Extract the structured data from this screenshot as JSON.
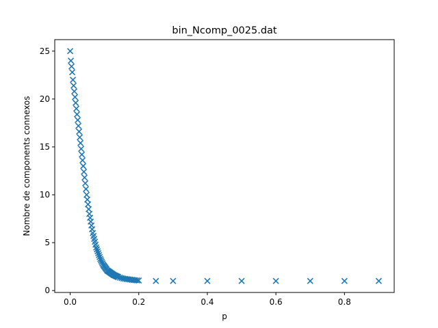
{
  "chart_data": {
    "type": "scatter",
    "title": "bin_Ncomp_0025.dat",
    "xlabel": "p",
    "ylabel": "Nombre de components connexos",
    "xlim": [
      -0.045,
      0.945
    ],
    "ylim": [
      -0.2,
      26.2
    ],
    "xticks": [
      "0.0",
      "0.2",
      "0.4",
      "0.6",
      "0.8"
    ],
    "xtick_values": [
      0.0,
      0.2,
      0.4,
      0.6,
      0.8
    ],
    "yticks": [
      "0",
      "5",
      "10",
      "15",
      "20",
      "25"
    ],
    "ytick_values": [
      0,
      5,
      10,
      15,
      20,
      25
    ],
    "grid": false,
    "marker": "x",
    "color": "#1f77b4",
    "series": [
      {
        "x": [
          0.0,
          0.002,
          0.004,
          0.006,
          0.008,
          0.01,
          0.012,
          0.014,
          0.016,
          0.018,
          0.02,
          0.022,
          0.024,
          0.026,
          0.028,
          0.03,
          0.032,
          0.034,
          0.036,
          0.038,
          0.04,
          0.042,
          0.044,
          0.046,
          0.048,
          0.05,
          0.052,
          0.054,
          0.056,
          0.058,
          0.06,
          0.062,
          0.064,
          0.066,
          0.068,
          0.07,
          0.072,
          0.074,
          0.076,
          0.078,
          0.08,
          0.082,
          0.084,
          0.086,
          0.088,
          0.09,
          0.092,
          0.094,
          0.096,
          0.098,
          0.1,
          0.102,
          0.104,
          0.106,
          0.108,
          0.11,
          0.112,
          0.114,
          0.116,
          0.118,
          0.12,
          0.122,
          0.124,
          0.126,
          0.128,
          0.13,
          0.132,
          0.134,
          0.136,
          0.138,
          0.14,
          0.145,
          0.15,
          0.155,
          0.16,
          0.165,
          0.17,
          0.175,
          0.18,
          0.185,
          0.19,
          0.195,
          0.2,
          0.25,
          0.3,
          0.4,
          0.5,
          0.6,
          0.7,
          0.8,
          0.9
        ],
        "y": [
          25.0,
          24.0,
          23.4,
          22.8,
          22.0,
          21.4,
          20.8,
          20.2,
          19.6,
          19.0,
          18.4,
          17.8,
          17.2,
          16.6,
          16.0,
          15.4,
          14.8,
          14.2,
          13.6,
          13.0,
          12.4,
          11.8,
          11.2,
          10.6,
          10.0,
          9.5,
          9.0,
          8.5,
          8.0,
          7.6,
          7.2,
          6.8,
          6.4,
          6.0,
          5.7,
          5.4,
          5.1,
          4.8,
          4.5,
          4.3,
          4.1,
          3.9,
          3.7,
          3.5,
          3.3,
          3.15,
          3.0,
          2.85,
          2.7,
          2.6,
          2.5,
          2.4,
          2.3,
          2.2,
          2.1,
          2.05,
          2.0,
          1.95,
          1.9,
          1.85,
          1.8,
          1.75,
          1.7,
          1.65,
          1.6,
          1.58,
          1.55,
          1.5,
          1.48,
          1.45,
          1.4,
          1.35,
          1.3,
          1.25,
          1.22,
          1.2,
          1.18,
          1.15,
          1.12,
          1.1,
          1.08,
          1.06,
          1.05,
          1.0,
          1.0,
          1.0,
          1.0,
          1.0,
          1.0,
          1.0,
          1.0
        ]
      }
    ]
  }
}
